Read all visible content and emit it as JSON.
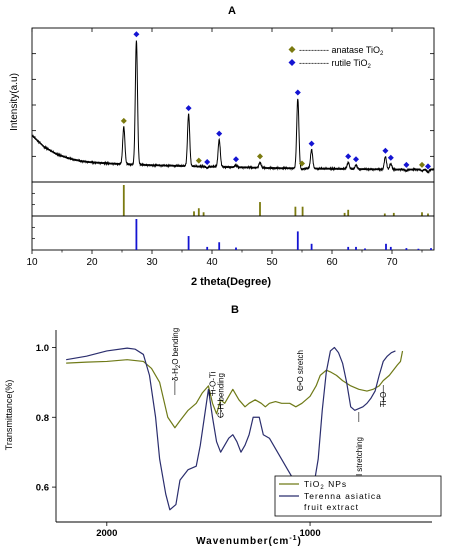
{
  "chart_data": [
    {
      "type": "line",
      "panel_label": "A",
      "xlabel": "2 theta(Degree)",
      "ylabel": "Intensity(a.u)",
      "xlim": [
        10,
        77
      ],
      "x_ticks": [
        10,
        20,
        30,
        40,
        50,
        60,
        70
      ],
      "legend_position": "top-right",
      "legend": [
        {
          "marker": "diamond",
          "color": "#7b7a10",
          "label": "anatase TiO",
          "sub": "2"
        },
        {
          "marker": "diamond",
          "color": "#1414d2",
          "label": "rutile TiO",
          "sub": "2"
        }
      ],
      "colors": {
        "anatase": "#7b7a10",
        "rutile": "#1414d2",
        "pattern": "#000000"
      },
      "baseline": {
        "x": [
          10,
          12,
          14,
          16,
          18,
          20,
          22,
          24,
          30,
          40,
          50,
          60,
          70,
          77
        ],
        "y": [
          0.3,
          0.22,
          0.17,
          0.14,
          0.12,
          0.11,
          0.105,
          0.1,
          0.09,
          0.08,
          0.07,
          0.065,
          0.06,
          0.06
        ]
      },
      "peaks": [
        {
          "two_theta": 25.3,
          "height": 0.36,
          "phase": "anatase"
        },
        {
          "two_theta": 27.4,
          "height": 0.97,
          "phase": "rutile"
        },
        {
          "two_theta": 36.1,
          "height": 0.45,
          "phase": "rutile"
        },
        {
          "two_theta": 37.8,
          "height": 0.08,
          "phase": "anatase"
        },
        {
          "two_theta": 39.2,
          "height": 0.07,
          "phase": "rutile"
        },
        {
          "two_theta": 41.2,
          "height": 0.27,
          "phase": "rutile"
        },
        {
          "two_theta": 44.0,
          "height": 0.09,
          "phase": "rutile"
        },
        {
          "two_theta": 48.0,
          "height": 0.11,
          "phase": "anatase"
        },
        {
          "two_theta": 54.3,
          "height": 0.56,
          "phase": "rutile"
        },
        {
          "two_theta": 55.0,
          "height": 0.06,
          "phase": "anatase"
        },
        {
          "two_theta": 56.6,
          "height": 0.2,
          "phase": "rutile"
        },
        {
          "two_theta": 62.7,
          "height": 0.11,
          "phase": "rutile"
        },
        {
          "two_theta": 64.0,
          "height": 0.09,
          "phase": "rutile"
        },
        {
          "two_theta": 68.9,
          "height": 0.15,
          "phase": "rutile"
        },
        {
          "two_theta": 69.8,
          "height": 0.1,
          "phase": "rutile"
        },
        {
          "two_theta": 72.4,
          "height": 0.05,
          "phase": "rutile"
        },
        {
          "two_theta": 75.0,
          "height": 0.05,
          "phase": "anatase"
        },
        {
          "two_theta": 76.0,
          "height": 0.04,
          "phase": "rutile"
        }
      ],
      "reference_anatase": [
        {
          "two_theta": 25.3,
          "intensity": 1.0
        },
        {
          "two_theta": 37.0,
          "intensity": 0.15
        },
        {
          "two_theta": 37.8,
          "intensity": 0.25
        },
        {
          "two_theta": 38.6,
          "intensity": 0.12
        },
        {
          "two_theta": 48.0,
          "intensity": 0.45
        },
        {
          "two_theta": 53.9,
          "intensity": 0.3
        },
        {
          "two_theta": 55.1,
          "intensity": 0.3
        },
        {
          "two_theta": 62.1,
          "intensity": 0.1
        },
        {
          "two_theta": 62.7,
          "intensity": 0.2
        },
        {
          "two_theta": 68.8,
          "intensity": 0.08
        },
        {
          "two_theta": 70.3,
          "intensity": 0.1
        },
        {
          "two_theta": 75.0,
          "intensity": 0.12
        },
        {
          "two_theta": 76.0,
          "intensity": 0.08
        }
      ],
      "reference_rutile": [
        {
          "two_theta": 27.4,
          "intensity": 1.0
        },
        {
          "two_theta": 36.1,
          "intensity": 0.45
        },
        {
          "two_theta": 39.2,
          "intensity": 0.1
        },
        {
          "two_theta": 41.2,
          "intensity": 0.25
        },
        {
          "two_theta": 44.0,
          "intensity": 0.08
        },
        {
          "two_theta": 54.3,
          "intensity": 0.6
        },
        {
          "two_theta": 56.6,
          "intensity": 0.2
        },
        {
          "two_theta": 62.7,
          "intensity": 0.1
        },
        {
          "two_theta": 64.0,
          "intensity": 0.1
        },
        {
          "two_theta": 65.5,
          "intensity": 0.05
        },
        {
          "two_theta": 69.0,
          "intensity": 0.2
        },
        {
          "two_theta": 69.8,
          "intensity": 0.1
        },
        {
          "two_theta": 72.4,
          "intensity": 0.06
        },
        {
          "two_theta": 74.4,
          "intensity": 0.04
        },
        {
          "two_theta": 76.5,
          "intensity": 0.06
        }
      ]
    },
    {
      "type": "line",
      "panel_label": "B",
      "xlabel": "Wavenumber(cm",
      "xlabel_sup": "-1",
      "xlabel_close": ")",
      "ylabel": "Transmittance(%)",
      "x_reversed": true,
      "xlim": [
        2250,
        400
      ],
      "ylim": [
        0.5,
        1.05
      ],
      "x_ticks": [
        2000,
        1000
      ],
      "y_ticks": [
        0.6,
        0.8,
        1.0
      ],
      "y_tick_labels": [
        "0.6",
        "0.8",
        "1.0"
      ],
      "legend_position": "bottom-right",
      "series": [
        {
          "name": "TiO",
          "name_sub": "2",
          "name_rest": " NPs",
          "color": "#6f7a18",
          "x": [
            2200,
            2100,
            2000,
            1900,
            1820,
            1780,
            1740,
            1700,
            1665,
            1640,
            1600,
            1560,
            1530,
            1500,
            1480,
            1460,
            1440,
            1420,
            1400,
            1380,
            1350,
            1320,
            1300,
            1270,
            1240,
            1220,
            1200,
            1170,
            1140,
            1100,
            1070,
            1040,
            1000,
            970,
            950,
            920,
            900,
            870,
            840,
            800,
            760,
            720,
            690,
            660,
            640,
            610,
            590,
            570,
            555,
            545
          ],
          "y": [
            0.955,
            0.958,
            0.96,
            0.965,
            0.96,
            0.94,
            0.9,
            0.8,
            0.77,
            0.79,
            0.82,
            0.84,
            0.87,
            0.89,
            0.84,
            0.81,
            0.85,
            0.84,
            0.86,
            0.88,
            0.85,
            0.83,
            0.84,
            0.85,
            0.84,
            0.83,
            0.84,
            0.845,
            0.84,
            0.84,
            0.83,
            0.84,
            0.86,
            0.89,
            0.92,
            0.935,
            0.93,
            0.92,
            0.905,
            0.89,
            0.88,
            0.875,
            0.88,
            0.89,
            0.905,
            0.92,
            0.935,
            0.95,
            0.96,
            0.99
          ]
        },
        {
          "name": "Terenna asiatica",
          "name_line2": "fruit extract",
          "color": "#2b2e6e",
          "x": [
            2200,
            2100,
            2000,
            1900,
            1860,
            1820,
            1790,
            1760,
            1740,
            1710,
            1690,
            1660,
            1640,
            1600,
            1560,
            1540,
            1520,
            1500,
            1480,
            1460,
            1440,
            1420,
            1400,
            1380,
            1360,
            1340,
            1320,
            1300,
            1280,
            1250,
            1230,
            1200,
            1170,
            1140,
            1110,
            1080,
            1050,
            1020,
            1000,
            980,
            960,
            940,
            920,
            900,
            880,
            860,
            840,
            820,
            800,
            780,
            760,
            740,
            720,
            700,
            680,
            660,
            640,
            620,
            600,
            580
          ],
          "y": [
            0.965,
            0.975,
            0.99,
            0.998,
            0.995,
            0.98,
            0.92,
            0.8,
            0.68,
            0.58,
            0.535,
            0.55,
            0.62,
            0.65,
            0.66,
            0.72,
            0.8,
            0.88,
            0.8,
            0.73,
            0.7,
            0.72,
            0.74,
            0.75,
            0.73,
            0.7,
            0.72,
            0.75,
            0.8,
            0.8,
            0.75,
            0.74,
            0.71,
            0.68,
            0.65,
            0.62,
            0.6,
            0.585,
            0.59,
            0.61,
            0.68,
            0.82,
            0.93,
            0.99,
            1.0,
            0.985,
            0.955,
            0.9,
            0.83,
            0.82,
            0.825,
            0.83,
            0.84,
            0.855,
            0.875,
            0.92,
            0.96,
            0.975,
            0.985,
            0.99
          ]
        }
      ],
      "annotations": [
        {
          "text": "δ-H",
          "sub": "2",
          "rest": "O bending",
          "wavenumber": 1665
        },
        {
          "text": "Ti-O-Ti",
          "sub": "",
          "rest": "",
          "wavenumber": 1480
        },
        {
          "text": "C-H bending",
          "sub": "",
          "rest": "",
          "wavenumber": 1440
        },
        {
          "text": "C-O stretch",
          "sub": "",
          "rest": "",
          "wavenumber": 1050
        },
        {
          "text": "C-Cl stretching",
          "sub": "",
          "rest": "",
          "wavenumber": 760
        },
        {
          "text": "Ti-O",
          "sub": "",
          "rest": "",
          "wavenumber": 640
        }
      ]
    }
  ]
}
